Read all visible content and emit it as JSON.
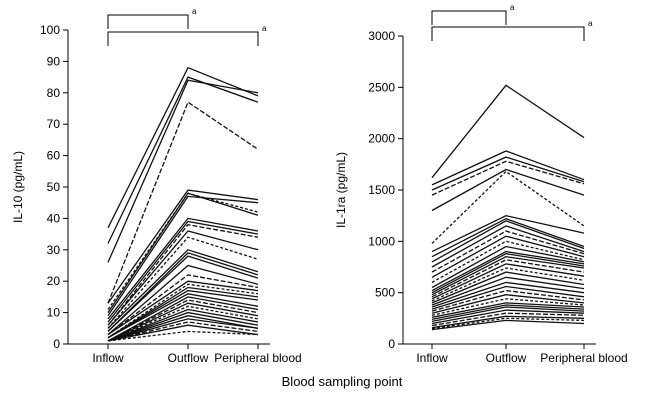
{
  "shared_xlabel": "Blood sampling point",
  "colors": {
    "axis": "#000000",
    "line": "#111111"
  },
  "chart_data": [
    {
      "type": "line",
      "title": "",
      "xlabel": "",
      "ylabel": "IL-10 (pg/mL)",
      "categories": [
        "Inflow",
        "Outflow",
        "Peripheral blood"
      ],
      "ylim": [
        0,
        100
      ],
      "yticks": [
        "0",
        "10",
        "20",
        "30",
        "40",
        "50",
        "60",
        "70",
        "80",
        "90",
        "100"
      ],
      "grid": false,
      "significance": [
        {
          "from": 0,
          "to": 1,
          "mark": "a"
        },
        {
          "from": 0,
          "to": 2,
          "mark": "a"
        }
      ],
      "series": [
        {
          "values": [
            37,
            88,
            79
          ]
        },
        {
          "values": [
            32,
            85,
            77
          ]
        },
        {
          "values": [
            26,
            84,
            80
          ]
        },
        {
          "values": [
            13,
            77,
            62
          ]
        },
        {
          "values": [
            13,
            49,
            46
          ]
        },
        {
          "values": [
            11,
            48,
            42
          ]
        },
        {
          "values": [
            10,
            48,
            41
          ]
        },
        {
          "values": [
            9,
            47,
            45
          ]
        },
        {
          "values": [
            8,
            40,
            36
          ]
        },
        {
          "values": [
            7,
            39,
            35
          ]
        },
        {
          "values": [
            6,
            38,
            34
          ]
        },
        {
          "values": [
            6,
            36,
            30
          ]
        },
        {
          "values": [
            5,
            34,
            27
          ]
        },
        {
          "values": [
            5,
            30,
            23
          ]
        },
        {
          "values": [
            4,
            29,
            22
          ]
        },
        {
          "values": [
            4,
            28,
            21
          ]
        },
        {
          "values": [
            3,
            25,
            19
          ]
        },
        {
          "values": [
            3,
            22,
            18
          ]
        },
        {
          "values": [
            3,
            20,
            17
          ]
        },
        {
          "values": [
            2,
            19,
            16
          ]
        },
        {
          "values": [
            2,
            18,
            15
          ]
        },
        {
          "values": [
            2,
            17,
            14
          ]
        },
        {
          "values": [
            2,
            16,
            12
          ]
        },
        {
          "values": [
            1,
            15,
            11
          ]
        },
        {
          "values": [
            1,
            14,
            10
          ]
        },
        {
          "values": [
            1,
            13,
            9
          ]
        },
        {
          "values": [
            1,
            12,
            8
          ]
        },
        {
          "values": [
            1,
            11,
            7
          ]
        },
        {
          "values": [
            1,
            10,
            6
          ]
        },
        {
          "values": [
            1,
            9,
            5
          ]
        },
        {
          "values": [
            1,
            8,
            5
          ]
        },
        {
          "values": [
            1,
            7,
            4
          ]
        },
        {
          "values": [
            1,
            6,
            3
          ]
        },
        {
          "values": [
            1,
            4,
            3
          ]
        }
      ]
    },
    {
      "type": "line",
      "title": "",
      "xlabel": "",
      "ylabel": "IL-1ra (pg/mL)",
      "categories": [
        "Inflow",
        "Outflow",
        "Peripheral blood"
      ],
      "ylim": [
        0,
        3000
      ],
      "yticks": [
        "0",
        "500",
        "1000",
        "1500",
        "2000",
        "2500",
        "3000"
      ],
      "grid": false,
      "significance": [
        {
          "from": 0,
          "to": 1,
          "mark": "a"
        },
        {
          "from": 0,
          "to": 2,
          "mark": "a"
        }
      ],
      "series": [
        {
          "values": [
            1620,
            2520,
            2010
          ]
        },
        {
          "values": [
            1550,
            1880,
            1600
          ]
        },
        {
          "values": [
            1500,
            1820,
            1580
          ]
        },
        {
          "values": [
            1450,
            1780,
            1560
          ]
        },
        {
          "values": [
            1300,
            1700,
            1450
          ]
        },
        {
          "values": [
            980,
            1680,
            1150
          ]
        },
        {
          "values": [
            900,
            1250,
            1080
          ]
        },
        {
          "values": [
            850,
            1220,
            950
          ]
        },
        {
          "values": [
            800,
            1200,
            930
          ]
        },
        {
          "values": [
            750,
            1150,
            900
          ]
        },
        {
          "values": [
            700,
            1100,
            880
          ]
        },
        {
          "values": [
            650,
            1050,
            850
          ]
        },
        {
          "values": [
            600,
            1000,
            820
          ]
        },
        {
          "values": [
            550,
            950,
            800
          ]
        },
        {
          "values": [
            520,
            900,
            780
          ]
        },
        {
          "values": [
            500,
            880,
            760
          ]
        },
        {
          "values": [
            480,
            850,
            740
          ]
        },
        {
          "values": [
            460,
            820,
            700
          ]
        },
        {
          "values": [
            440,
            780,
            660
          ]
        },
        {
          "values": [
            420,
            740,
            620
          ]
        },
        {
          "values": [
            400,
            700,
            580
          ]
        },
        {
          "values": [
            380,
            650,
            540
          ]
        },
        {
          "values": [
            360,
            600,
            500
          ]
        },
        {
          "values": [
            340,
            560,
            460
          ]
        },
        {
          "values": [
            320,
            520,
            430
          ]
        },
        {
          "values": [
            300,
            480,
            400
          ]
        },
        {
          "values": [
            280,
            440,
            380
          ]
        },
        {
          "values": [
            260,
            400,
            360
          ]
        },
        {
          "values": [
            240,
            380,
            340
          ]
        },
        {
          "values": [
            220,
            360,
            320
          ]
        },
        {
          "values": [
            200,
            330,
            300
          ]
        },
        {
          "values": [
            180,
            300,
            280
          ]
        },
        {
          "values": [
            160,
            270,
            250
          ]
        },
        {
          "values": [
            150,
            250,
            230
          ]
        },
        {
          "values": [
            140,
            230,
            200
          ]
        }
      ]
    }
  ]
}
